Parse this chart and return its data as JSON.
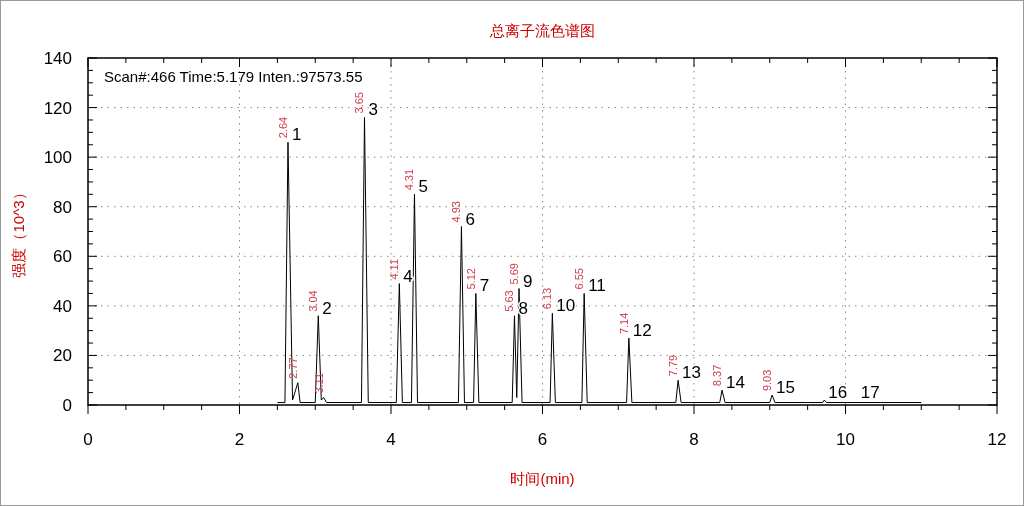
{
  "chart_data": {
    "type": "line",
    "title": "总离子流色谱图",
    "xlabel": "时间(min)",
    "ylabel": "强度（10^3）",
    "xlim": [
      0,
      12
    ],
    "ylim": [
      0,
      140
    ],
    "xticks": [
      0,
      {
        "value": 0.5,
        "label": null
      },
      {
        "value": 1,
        "label": null
      },
      {
        "value": 1.5,
        "label": null
      },
      2,
      {
        "value": 2.5,
        "label": null
      },
      {
        "value": 3,
        "label": null
      },
      {
        "value": 3.5,
        "label": null
      },
      4,
      {
        "value": 4.5,
        "label": null
      },
      {
        "value": 5,
        "label": null
      },
      {
        "value": 5.5,
        "label": null
      },
      6,
      {
        "value": 6.5,
        "label": null
      },
      {
        "value": 7,
        "label": null
      },
      {
        "value": 7.5,
        "label": null
      },
      8,
      {
        "value": 8.5,
        "label": null
      },
      {
        "value": 9,
        "label": null
      },
      {
        "value": 9.5,
        "label": null
      },
      10,
      {
        "value": 10.5,
        "label": null
      },
      {
        "value": 11,
        "label": null
      },
      {
        "value": 11.5,
        "label": null
      },
      12
    ],
    "yticks": [
      0,
      {
        "value": 5,
        "label": null
      },
      {
        "value": 10,
        "label": null
      },
      {
        "value": 15,
        "label": null
      },
      20,
      {
        "value": 25,
        "label": null
      },
      {
        "value": 30,
        "label": null
      },
      {
        "value": 35,
        "label": null
      },
      40,
      {
        "value": 45,
        "label": null
      },
      {
        "value": 50,
        "label": null
      },
      {
        "value": 55,
        "label": null
      },
      60,
      {
        "value": 65,
        "label": null
      },
      {
        "value": 70,
        "label": null
      },
      {
        "value": 75,
        "label": null
      },
      80,
      {
        "value": 85,
        "label": null
      },
      {
        "value": 90,
        "label": null
      },
      {
        "value": 95,
        "label": null
      },
      100,
      {
        "value": 105,
        "label": null
      },
      {
        "value": 110,
        "label": null
      },
      {
        "value": 115,
        "label": null
      },
      120,
      {
        "value": 125,
        "label": null
      },
      {
        "value": 130,
        "label": null
      },
      {
        "value": 135,
        "label": null
      },
      140
    ],
    "grid": true,
    "line_style": "solid",
    "series": [
      {
        "color": "#000000",
        "x": [
          2.5,
          2.6,
          2.64,
          2.7,
          2.77,
          2.8,
          3.0,
          3.04,
          3.08,
          3.11,
          3.15,
          3.61,
          3.65,
          3.7,
          4.07,
          4.11,
          4.15,
          4.27,
          4.31,
          4.35,
          4.89,
          4.93,
          4.97,
          5.09,
          5.12,
          5.16,
          5.6,
          5.63,
          5.66,
          5.69,
          5.73,
          6.1,
          6.13,
          6.17,
          6.52,
          6.55,
          6.59,
          7.11,
          7.14,
          7.18,
          7.76,
          7.79,
          7.83,
          8.34,
          8.37,
          8.41,
          9.0,
          9.03,
          9.07,
          9.7,
          9.72,
          9.75,
          11.0
        ],
        "values": [
          1,
          1,
          106,
          2,
          9,
          1,
          1,
          36,
          2,
          3,
          1,
          1,
          116,
          1,
          1,
          49,
          1,
          1,
          85,
          1,
          1,
          72,
          1,
          1,
          45,
          1,
          1,
          36,
          3,
          47,
          1,
          1,
          37,
          1,
          1,
          45,
          1,
          1,
          27,
          1,
          1,
          10,
          1,
          1,
          6,
          1,
          1,
          4,
          1,
          1,
          2,
          1,
          1
        ]
      }
    ],
    "annotations": [
      {
        "text": "1",
        "x": 2.64,
        "y": 106
      },
      {
        "text": "2",
        "x": 3.04,
        "y": 36
      },
      {
        "text": "3",
        "x": 3.65,
        "y": 116
      },
      {
        "text": "4",
        "x": 4.11,
        "y": 49
      },
      {
        "text": "5",
        "x": 4.31,
        "y": 85
      },
      {
        "text": "6",
        "x": 4.93,
        "y": 72
      },
      {
        "text": "7",
        "x": 5.12,
        "y": 45
      },
      {
        "text": "8",
        "x": 5.63,
        "y": 36
      },
      {
        "text": "9",
        "x": 5.69,
        "y": 47
      },
      {
        "text": "10",
        "x": 6.13,
        "y": 37
      },
      {
        "text": "11",
        "x": 6.55,
        "y": 45
      },
      {
        "text": "12",
        "x": 7.14,
        "y": 27
      },
      {
        "text": "13",
        "x": 7.79,
        "y": 10
      },
      {
        "text": "14",
        "x": 8.37,
        "y": 6
      },
      {
        "text": "15",
        "x": 9.03,
        "y": 4
      },
      {
        "text": "16",
        "x": 9.72,
        "y": 2
      },
      {
        "text": "17",
        "x": 10.15,
        "y": 2
      },
      "Scan#:466  Time:5.179  Inten.:97573.55",
      {
        "text": "2.64",
        "x": 2.64,
        "y": 106
      },
      {
        "text": "2.77",
        "x": 2.77,
        "y": 9
      },
      {
        "text": "3.04",
        "x": 3.04,
        "y": 36
      },
      {
        "text": "3.11",
        "x": 3.11,
        "y": 3
      },
      {
        "text": "3.65",
        "x": 3.65,
        "y": 116
      },
      {
        "text": "4.11",
        "x": 4.11,
        "y": 49
      },
      {
        "text": "4.31",
        "x": 4.31,
        "y": 85
      },
      {
        "text": "4.93",
        "x": 4.93,
        "y": 72
      },
      {
        "text": "5.12",
        "x": 5.12,
        "y": 45
      },
      {
        "text": "5.63",
        "x": 5.63,
        "y": 36
      },
      {
        "text": "5.69",
        "x": 5.69,
        "y": 47
      },
      {
        "text": "6.13",
        "x": 6.13,
        "y": 37
      },
      {
        "text": "6.55",
        "x": 6.55,
        "y": 45
      },
      {
        "text": "7.14",
        "x": 7.14,
        "y": 27
      },
      {
        "text": "7.79",
        "x": 7.79,
        "y": 10
      },
      {
        "text": "8.37",
        "x": 8.37,
        "y": 6
      },
      {
        "text": "9.03",
        "x": 9.03,
        "y": 4
      }
    ]
  }
}
